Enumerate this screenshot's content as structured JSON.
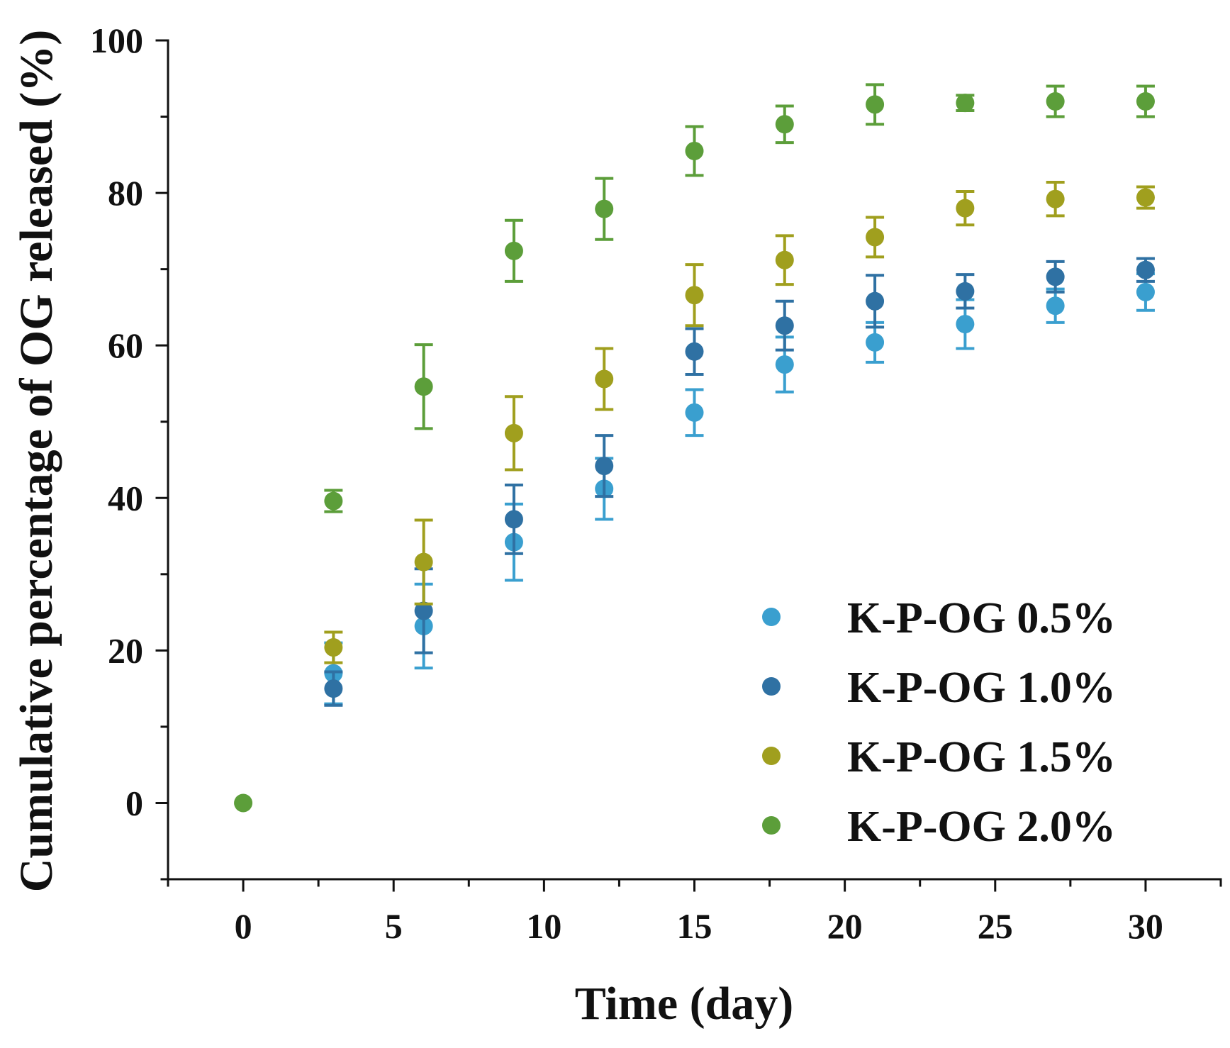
{
  "chart_data": {
    "type": "scatter",
    "title": "",
    "xlabel": "Time (day)",
    "ylabel": "Cumulative percentage of OG released (%)",
    "xlim": [
      -2.5,
      32.5
    ],
    "ylim": [
      -10,
      100
    ],
    "xticks": [
      0,
      5,
      10,
      15,
      20,
      25,
      30
    ],
    "xtick_labels": [
      "0",
      "5",
      "10",
      "15",
      "20",
      "25",
      "30"
    ],
    "yticks": [
      0,
      20,
      40,
      60,
      80,
      100
    ],
    "ytick_labels": [
      "0",
      "20",
      "40",
      "60",
      "80",
      "100"
    ],
    "x_minor_ticks": [
      -2.5,
      2.5,
      7.5,
      12.5,
      17.5,
      22.5,
      27.5,
      32.5
    ],
    "y_minor_ticks": [
      -10,
      10,
      30,
      50,
      70,
      90
    ],
    "grid": false,
    "legend_position": "bottom-right",
    "series": [
      {
        "name": "K-P-OG 0.5%",
        "color": "#3a9fcf",
        "x": [
          3,
          6,
          9,
          12,
          15,
          18,
          21,
          24,
          27,
          30
        ],
        "y": [
          17.0,
          23.2,
          34.2,
          41.2,
          51.2,
          57.5,
          60.4,
          62.8,
          65.2,
          67.0
        ],
        "err": [
          4.0,
          5.5,
          5.0,
          4.0,
          3.0,
          3.6,
          2.6,
          3.2,
          2.2,
          2.4
        ]
      },
      {
        "name": "K-P-OG 1.0%",
        "color": "#2f71a3",
        "x": [
          3,
          6,
          9,
          12,
          15,
          18,
          21,
          24,
          27,
          30
        ],
        "y": [
          15.0,
          25.2,
          37.2,
          44.2,
          59.2,
          62.6,
          65.8,
          67.1,
          69.0,
          69.9
        ],
        "err": [
          2.2,
          5.5,
          4.5,
          4.0,
          3.0,
          3.2,
          3.4,
          2.2,
          2.0,
          1.5
        ]
      },
      {
        "name": "K-P-OG 1.5%",
        "color": "#a09f1e",
        "x": [
          3,
          6,
          9,
          12,
          15,
          18,
          21,
          24,
          27,
          30
        ],
        "y": [
          20.4,
          31.6,
          48.5,
          55.6,
          66.6,
          71.2,
          74.2,
          78.0,
          79.2,
          79.4
        ],
        "err": [
          2.0,
          5.5,
          4.8,
          4.0,
          4.0,
          3.2,
          2.6,
          2.2,
          2.2,
          1.4
        ]
      },
      {
        "name": "K-P-OG 2.0%",
        "color": "#5c9e3a",
        "x": [
          0,
          3,
          6,
          9,
          12,
          15,
          18,
          21,
          24,
          27,
          30
        ],
        "y": [
          0.0,
          39.6,
          54.6,
          72.4,
          77.9,
          85.5,
          89.0,
          91.6,
          91.8,
          92.0,
          92.0
        ],
        "err": [
          0.0,
          1.4,
          5.5,
          4.0,
          4.0,
          3.2,
          2.4,
          2.6,
          1.0,
          2.0,
          2.0
        ]
      }
    ]
  }
}
